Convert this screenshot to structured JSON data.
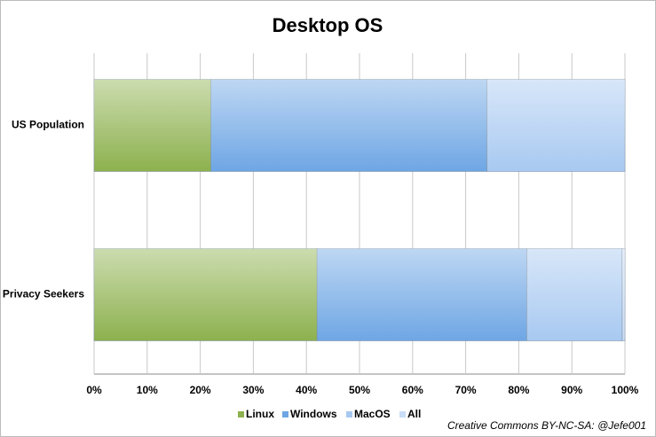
{
  "chart_data": {
    "type": "stacked-barh",
    "title": "Desktop OS",
    "categories": [
      "US Population",
      "Privacy Seekers"
    ],
    "series": [
      {
        "name": "Linux",
        "color": "#8db14e",
        "values": [
          22,
          42
        ]
      },
      {
        "name": "Windows",
        "color": "#6ea6e4",
        "values": [
          52,
          39.5
        ]
      },
      {
        "name": "MacOS",
        "color": "#a8c9f1",
        "values": [
          26,
          18
        ]
      },
      {
        "name": "All",
        "color": "#c9ddf6",
        "values": [
          0,
          0.5
        ]
      }
    ],
    "xlim": [
      0,
      100
    ],
    "xticks": [
      {
        "value": 0,
        "label": "0%"
      },
      {
        "value": 10,
        "label": "10%"
      },
      {
        "value": 20,
        "label": "20%"
      },
      {
        "value": 30,
        "label": "30%"
      },
      {
        "value": 40,
        "label": "40%"
      },
      {
        "value": 50,
        "label": "50%"
      },
      {
        "value": 60,
        "label": "60%"
      },
      {
        "value": 70,
        "label": "70%"
      },
      {
        "value": 80,
        "label": "80%"
      },
      {
        "value": 90,
        "label": "90%"
      },
      {
        "value": 100,
        "label": "100%"
      }
    ],
    "grid": true,
    "legend": "bottom",
    "annotation": "Creative Commons BY-NC-SA: @Jefe001"
  }
}
